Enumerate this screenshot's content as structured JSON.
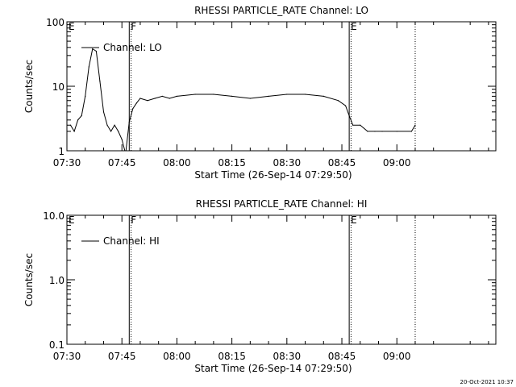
{
  "timestamp": "20-Oct-2021 10:37",
  "chart_data": [
    {
      "type": "line",
      "title": "RHESSI PARTICLE_RATE Channel: LO",
      "xlabel": "Start Time (26-Sep-14 07:29:50)",
      "ylabel": "Counts/sec",
      "yscale": "log",
      "ylim": [
        1,
        100
      ],
      "xlim_minutes": [
        450,
        567
      ],
      "xticks": [
        "07:30",
        "07:45",
        "08:00",
        "08:15",
        "08:30",
        "08:45",
        "09:00"
      ],
      "yticks": [
        "1",
        "10",
        "100"
      ],
      "legend": "Channel: LO",
      "markers": [
        {
          "label": "E",
          "t": "07:30",
          "style": "none"
        },
        {
          "label": "F",
          "t": "07:47",
          "style": "solid"
        },
        {
          "label": "",
          "t": "07:47.5",
          "style": "dotted"
        },
        {
          "label": "E",
          "t": "08:47",
          "style": "solid"
        },
        {
          "label": "",
          "t": "08:47.5",
          "style": "dotted"
        },
        {
          "label": "",
          "t": "09:05",
          "style": "dotted"
        }
      ],
      "series": [
        {
          "name": "Channel: LO",
          "x": [
            "07:30",
            "07:31",
            "07:32",
            "07:33",
            "07:34",
            "07:35",
            "07:36",
            "07:37",
            "07:38",
            "07:39",
            "07:40",
            "07:41",
            "07:42",
            "07:43",
            "07:44",
            "07:45",
            "07:46",
            "07:47",
            "07:48",
            "07:49",
            "07:50",
            "07:52",
            "07:54",
            "07:56",
            "07:58",
            "08:00",
            "08:05",
            "08:10",
            "08:15",
            "08:20",
            "08:25",
            "08:30",
            "08:35",
            "08:40",
            "08:44",
            "08:46",
            "08:47",
            "08:48",
            "08:50",
            "08:52",
            "08:54",
            "08:56",
            "09:00",
            "09:04",
            "09:05"
          ],
          "y": [
            2.5,
            2.5,
            2.0,
            3.0,
            3.5,
            7,
            20,
            38,
            35,
            12,
            4,
            2.5,
            2.0,
            2.5,
            2.0,
            1.5,
            0.9,
            2.8,
            4.5,
            5.5,
            6.5,
            6.0,
            6.5,
            7.0,
            6.5,
            7.0,
            7.5,
            7.5,
            7.0,
            6.5,
            7.0,
            7.5,
            7.5,
            7.0,
            6.0,
            5.0,
            3.5,
            2.5,
            2.5,
            2.0,
            2.0,
            2.0,
            2.0,
            2.0,
            2.5
          ]
        }
      ]
    },
    {
      "type": "line",
      "title": "RHESSI PARTICLE_RATE Channel: HI",
      "xlabel": "Start Time (26-Sep-14 07:29:50)",
      "ylabel": "Counts/sec",
      "yscale": "log",
      "ylim": [
        0.1,
        10
      ],
      "xlim_minutes": [
        450,
        567
      ],
      "xticks": [
        "07:30",
        "07:45",
        "08:00",
        "08:15",
        "08:30",
        "08:45",
        "09:00"
      ],
      "yticks": [
        "0.1",
        "1.0",
        "10.0"
      ],
      "legend": "Channel: HI",
      "markers": [
        {
          "label": "E",
          "t": "07:30",
          "style": "none"
        },
        {
          "label": "F",
          "t": "07:47",
          "style": "solid"
        },
        {
          "label": "",
          "t": "07:47.5",
          "style": "dotted"
        },
        {
          "label": "E",
          "t": "08:47",
          "style": "solid"
        },
        {
          "label": "",
          "t": "08:47.5",
          "style": "dotted"
        },
        {
          "label": "",
          "t": "09:05",
          "style": "dotted"
        }
      ],
      "series": [
        {
          "name": "Channel: HI",
          "x": [],
          "y": []
        }
      ]
    }
  ]
}
